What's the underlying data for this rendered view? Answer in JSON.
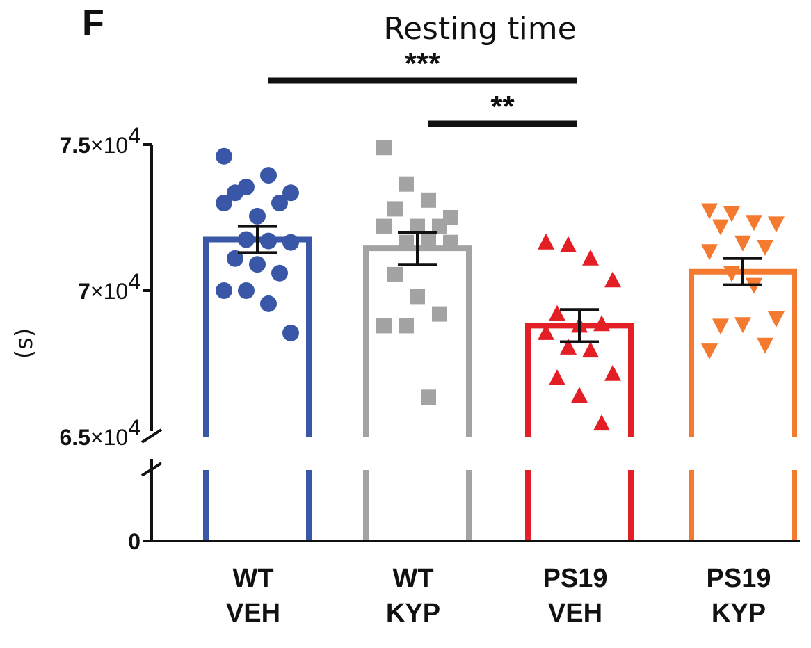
{
  "panel_label": "F",
  "chart_data": {
    "type": "bar",
    "title": "Resting time",
    "ylabel": "(s)",
    "xlabel": "",
    "categories": [
      {
        "line1": "WT",
        "line2": "VEH"
      },
      {
        "line1": "WT",
        "line2": "KYP"
      },
      {
        "line1": "PS19",
        "line2": "VEH"
      },
      {
        "line1": "PS19",
        "line2": "KYP"
      }
    ],
    "colors": [
      "#3A56A6",
      "#A3A3A3",
      "#E31E24",
      "#F37A2E"
    ],
    "markers": [
      "circle",
      "square",
      "triangle-up",
      "triangle-down"
    ],
    "means": [
      71750,
      71450,
      68800,
      70650
    ],
    "sem": [
      450,
      550,
      550,
      450
    ],
    "points": [
      [
        74600,
        73550,
        73950,
        73350,
        73350,
        72550,
        73000,
        73000,
        71750,
        71700,
        71650,
        71100,
        70900,
        70600,
        70000,
        70000,
        69550,
        68550
      ],
      [
        74900,
        73650,
        73100,
        72500,
        72800,
        72200,
        72200,
        72200,
        71650,
        71700,
        71650,
        70550,
        69800,
        69200,
        68800,
        68800,
        66350
      ],
      [
        71650,
        71550,
        71100,
        70350,
        69200,
        68800,
        68850,
        68550,
        68050,
        67950,
        67150,
        67000,
        66400,
        65450
      ],
      [
        72750,
        72650,
        72350,
        72300,
        72200,
        71650,
        71500,
        71350,
        70600,
        70200,
        69050,
        68800,
        68850,
        68150,
        67950
      ]
    ],
    "y_axis": {
      "ticks": [
        {
          "value": 0,
          "label": "0",
          "mantissa": "",
          "exponent": ""
        },
        {
          "value": 65000,
          "label": "",
          "mantissa": "6.5",
          "exponent": "4"
        },
        {
          "value": 70000,
          "label": "",
          "mantissa": "7",
          "exponent": "4"
        },
        {
          "value": 75000,
          "label": "",
          "mantissa": "7.5",
          "exponent": "4"
        }
      ],
      "lower_segment": [
        0,
        65000
      ],
      "upper_segment": [
        65000,
        75000
      ],
      "broken": true
    },
    "significance": [
      {
        "from": 0,
        "to": 2,
        "label": "***"
      },
      {
        "from": 1,
        "to": 2,
        "label": "**"
      }
    ],
    "grid": false,
    "legend": "none"
  }
}
